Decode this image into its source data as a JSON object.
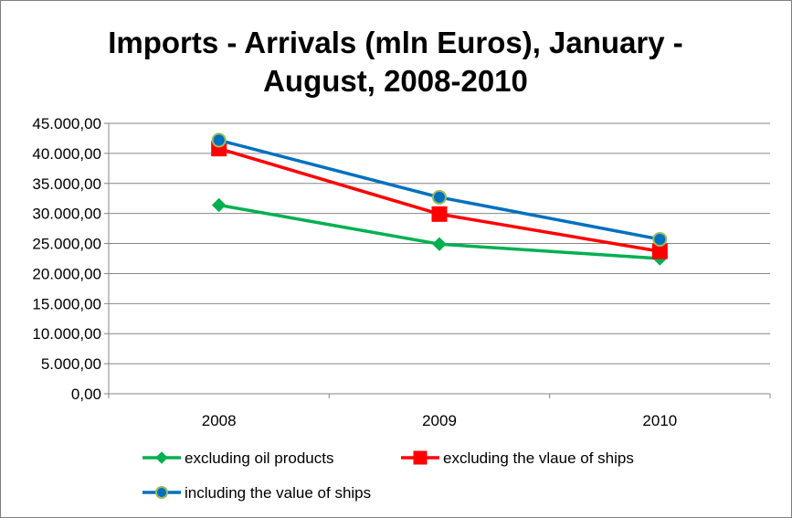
{
  "chart_data": {
    "type": "line",
    "title": "Imports - Arrivals (mln Euros), January - August, 2008-2010",
    "title_lines": [
      "Imports - Arrivals (mln Euros), January -",
      "August, 2008-2010"
    ],
    "categories": [
      "2008",
      "2009",
      "2010"
    ],
    "ylim": [
      0,
      45000
    ],
    "yticks": [
      0,
      5000,
      10000,
      15000,
      20000,
      25000,
      30000,
      35000,
      40000,
      45000
    ],
    "ytick_labels": [
      "0,00",
      "5.000,00",
      "10.000,00",
      "15.000,00",
      "20.000,00",
      "25.000,00",
      "30.000,00",
      "35.000,00",
      "40.000,00",
      "45.000,00"
    ],
    "grid": true,
    "legend_position": "bottom",
    "series": [
      {
        "name": "excluding oil products",
        "values": [
          31400,
          24900,
          22500
        ],
        "color": "#00b050",
        "marker": "diamond",
        "marker_fill": "#00b050",
        "marker_stroke": "#00b050"
      },
      {
        "name": "excluding the vlaue of ships",
        "values": [
          40800,
          29900,
          23700
        ],
        "color": "#ff0000",
        "marker": "square",
        "marker_fill": "#ff0000",
        "marker_stroke": "#ff0000"
      },
      {
        "name": "including the value of ships",
        "values": [
          42200,
          32700,
          25700
        ],
        "color": "#0070c0",
        "marker": "circle",
        "marker_fill": "#0070c0",
        "marker_stroke": "#9bbb59"
      }
    ]
  }
}
